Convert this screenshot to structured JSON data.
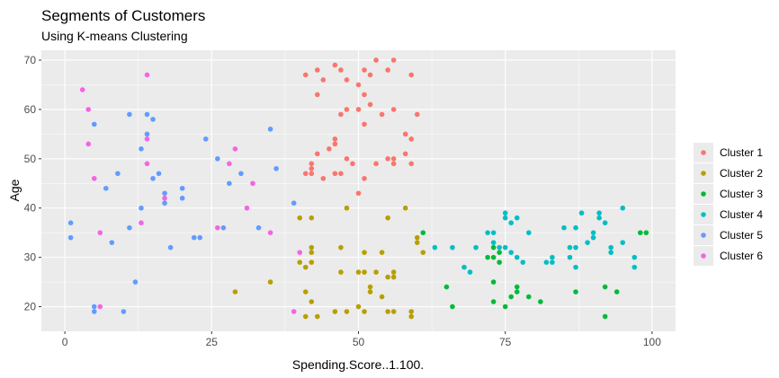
{
  "chart_data": {
    "type": "scatter",
    "title": "Segments of Customers",
    "subtitle": "Using K-means Clustering",
    "xlabel": "Spending.Score..1.100.",
    "ylabel": "Age",
    "xlim": [
      -4,
      104
    ],
    "ylim": [
      15,
      72
    ],
    "xticks": [
      0,
      25,
      50,
      75,
      100
    ],
    "yticks": [
      20,
      30,
      40,
      50,
      60,
      70
    ],
    "grid": true,
    "legend_position": "right",
    "series": [
      {
        "name": "Cluster 1",
        "color": "#F8766D",
        "points": [
          [
            41,
            67
          ],
          [
            43,
            68
          ],
          [
            44,
            66
          ],
          [
            46,
            69
          ],
          [
            47,
            68
          ],
          [
            48,
            66
          ],
          [
            51,
            68
          ],
          [
            52,
            67
          ],
          [
            53,
            70
          ],
          [
            56,
            70
          ],
          [
            55,
            68
          ],
          [
            59,
            67
          ],
          [
            43,
            63
          ],
          [
            50,
            65
          ],
          [
            51,
            63
          ],
          [
            52,
            61
          ],
          [
            48,
            60
          ],
          [
            47,
            59
          ],
          [
            50,
            60
          ],
          [
            54,
            59
          ],
          [
            56,
            60
          ],
          [
            60,
            59
          ],
          [
            51,
            57
          ],
          [
            58,
            55
          ],
          [
            59,
            54
          ],
          [
            45,
            52
          ],
          [
            46,
            53
          ],
          [
            46,
            54
          ],
          [
            42,
            49
          ],
          [
            42,
            48
          ],
          [
            43,
            51
          ],
          [
            48,
            50
          ],
          [
            49,
            49
          ],
          [
            53,
            49
          ],
          [
            55,
            50
          ],
          [
            56,
            50
          ],
          [
            58,
            51
          ],
          [
            59,
            49
          ],
          [
            41,
            47
          ],
          [
            42,
            47
          ],
          [
            44,
            46
          ],
          [
            46,
            47
          ],
          [
            47,
            47
          ],
          [
            56,
            49
          ],
          [
            50,
            43
          ],
          [
            51,
            46
          ]
        ]
      },
      {
        "name": "Cluster 2",
        "color": "#B79F00",
        "points": [
          [
            40,
            38
          ],
          [
            42,
            38
          ],
          [
            48,
            40
          ],
          [
            58,
            40
          ],
          [
            55,
            38
          ],
          [
            60,
            33
          ],
          [
            60,
            34
          ],
          [
            61,
            31
          ],
          [
            42,
            32
          ],
          [
            42,
            31
          ],
          [
            47,
            32
          ],
          [
            51,
            31
          ],
          [
            54,
            31
          ],
          [
            40,
            29
          ],
          [
            42,
            29
          ],
          [
            41,
            28
          ],
          [
            47,
            27
          ],
          [
            50,
            27
          ],
          [
            51,
            27
          ],
          [
            53,
            27
          ],
          [
            55,
            26
          ],
          [
            56,
            27
          ],
          [
            56,
            26
          ],
          [
            52,
            24
          ],
          [
            52,
            23
          ],
          [
            54,
            22
          ],
          [
            41,
            23
          ],
          [
            42,
            21
          ],
          [
            29,
            23
          ],
          [
            35,
            25
          ],
          [
            41,
            18
          ],
          [
            43,
            18
          ],
          [
            46,
            19
          ],
          [
            48,
            19
          ],
          [
            50,
            20
          ],
          [
            51,
            19
          ],
          [
            55,
            19
          ],
          [
            56,
            19
          ],
          [
            59,
            19
          ],
          [
            59,
            18
          ]
        ]
      },
      {
        "name": "Cluster 3",
        "color": "#00BA38",
        "points": [
          [
            61,
            35
          ],
          [
            73,
            32
          ],
          [
            74,
            31
          ],
          [
            72,
            30
          ],
          [
            73,
            30
          ],
          [
            74,
            29
          ],
          [
            73,
            25
          ],
          [
            73,
            21
          ],
          [
            75,
            20
          ],
          [
            76,
            22
          ],
          [
            77,
            24
          ],
          [
            77,
            23
          ],
          [
            79,
            22
          ],
          [
            81,
            21
          ],
          [
            65,
            24
          ],
          [
            66,
            20
          ],
          [
            87,
            23
          ],
          [
            92,
            24
          ],
          [
            92,
            18
          ],
          [
            94,
            23
          ],
          [
            98,
            35
          ],
          [
            99,
            35
          ]
        ]
      },
      {
        "name": "Cluster 4",
        "color": "#00BFC4",
        "points": [
          [
            63,
            32
          ],
          [
            66,
            32
          ],
          [
            68,
            28
          ],
          [
            69,
            27
          ],
          [
            70,
            32
          ],
          [
            72,
            35
          ],
          [
            73,
            35
          ],
          [
            73,
            33
          ],
          [
            74,
            32
          ],
          [
            75,
            38
          ],
          [
            75,
            39
          ],
          [
            76,
            37
          ],
          [
            76,
            31
          ],
          [
            77,
            38
          ],
          [
            77,
            30
          ],
          [
            78,
            29
          ],
          [
            79,
            35
          ],
          [
            75,
            32
          ],
          [
            82,
            29
          ],
          [
            83,
            30
          ],
          [
            83,
            29
          ],
          [
            85,
            36
          ],
          [
            86,
            32
          ],
          [
            87,
            32
          ],
          [
            86,
            30
          ],
          [
            87,
            28
          ],
          [
            88,
            39
          ],
          [
            89,
            33
          ],
          [
            90,
            35
          ],
          [
            90,
            34
          ],
          [
            91,
            39
          ],
          [
            91,
            38
          ],
          [
            92,
            37
          ],
          [
            93,
            32
          ],
          [
            93,
            31
          ],
          [
            95,
            40
          ],
          [
            95,
            33
          ],
          [
            97,
            30
          ],
          [
            97,
            28
          ],
          [
            87,
            36
          ]
        ]
      },
      {
        "name": "Cluster 5",
        "color": "#619CFF",
        "points": [
          [
            1,
            37
          ],
          [
            1,
            34
          ],
          [
            5,
            57
          ],
          [
            7,
            44
          ],
          [
            8,
            33
          ],
          [
            9,
            47
          ],
          [
            11,
            59
          ],
          [
            11,
            36
          ],
          [
            13,
            40
          ],
          [
            13,
            52
          ],
          [
            14,
            59
          ],
          [
            14,
            55
          ],
          [
            15,
            58
          ],
          [
            15,
            46
          ],
          [
            16,
            47
          ],
          [
            17,
            43
          ],
          [
            17,
            41
          ],
          [
            18,
            32
          ],
          [
            20,
            42
          ],
          [
            20,
            44
          ],
          [
            22,
            34
          ],
          [
            23,
            34
          ],
          [
            24,
            54
          ],
          [
            26,
            50
          ],
          [
            27,
            36
          ],
          [
            28,
            45
          ],
          [
            30,
            47
          ],
          [
            33,
            36
          ],
          [
            35,
            56
          ],
          [
            36,
            48
          ],
          [
            39,
            41
          ],
          [
            12,
            25
          ],
          [
            5,
            20
          ],
          [
            5,
            19
          ],
          [
            10,
            19
          ]
        ]
      },
      {
        "name": "Cluster 6",
        "color": "#F564E3",
        "points": [
          [
            3,
            64
          ],
          [
            4,
            60
          ],
          [
            4,
            53
          ],
          [
            5,
            46
          ],
          [
            6,
            35
          ],
          [
            6,
            20
          ],
          [
            13,
            37
          ],
          [
            14,
            67
          ],
          [
            14,
            54
          ],
          [
            14,
            49
          ],
          [
            17,
            42
          ],
          [
            26,
            36
          ],
          [
            28,
            49
          ],
          [
            29,
            52
          ],
          [
            31,
            40
          ],
          [
            32,
            45
          ],
          [
            35,
            35
          ],
          [
            39,
            19
          ],
          [
            40,
            31
          ]
        ]
      }
    ]
  }
}
